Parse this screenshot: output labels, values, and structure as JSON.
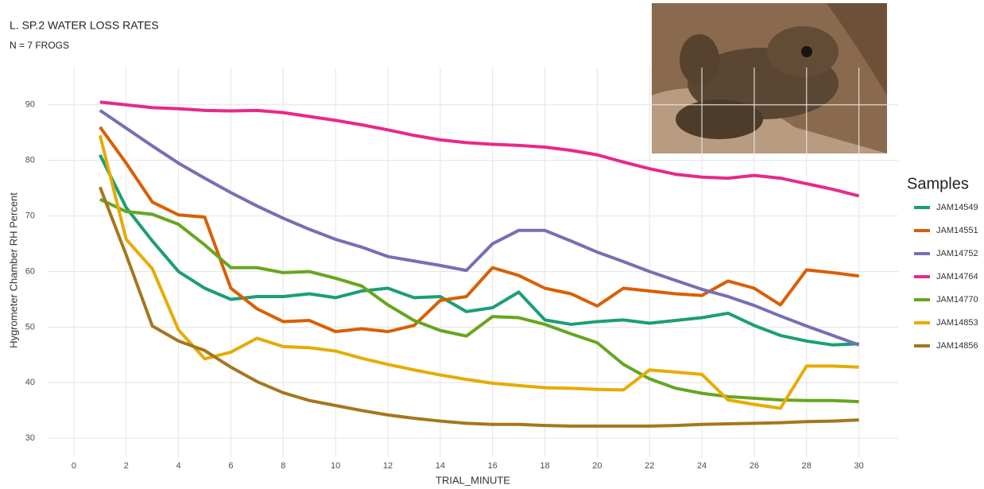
{
  "chart_data": {
    "type": "line",
    "title": "L. SP.2 WATER LOSS RATES",
    "subtitle": "N = 7 FROGS",
    "x_label": "TRIAL_MINUTE",
    "y_label": "Hygrometer Chamber RH Percent",
    "legend_title": "Samples",
    "legend_position": "right",
    "grid": true,
    "x": [
      1,
      2,
      3,
      4,
      5,
      6,
      7,
      8,
      9,
      10,
      11,
      12,
      13,
      14,
      15,
      16,
      17,
      18,
      19,
      20,
      21,
      22,
      23,
      24,
      25,
      26,
      27,
      28,
      29,
      30
    ],
    "xlim": [
      -1,
      31.5
    ],
    "xticks": [
      0,
      2,
      4,
      6,
      8,
      10,
      12,
      14,
      16,
      18,
      20,
      22,
      24,
      26,
      28,
      30
    ],
    "ylim": [
      26.6,
      96.7
    ],
    "yticks": [
      30,
      40,
      50,
      60,
      70,
      80,
      90
    ],
    "series": [
      {
        "name": "JAM14549",
        "color": "#1b9e77",
        "values": [
          81,
          71.5,
          65.5,
          60,
          57,
          55,
          55.5,
          55.5,
          56,
          55.3,
          56.5,
          57,
          55.3,
          55.5,
          52.8,
          53.5,
          56.3,
          51.3,
          50.5,
          51,
          51.3,
          50.7,
          51.2,
          51.7,
          52.5,
          50.3,
          48.5,
          47.5,
          46.8,
          47
        ]
      },
      {
        "name": "JAM14551",
        "color": "#d95f02",
        "values": [
          86,
          79.5,
          72.5,
          70.2,
          69.8,
          57,
          53.3,
          51,
          51.2,
          49.2,
          49.7,
          49.2,
          50.3,
          54.8,
          55.5,
          60.7,
          59.3,
          57,
          56,
          53.8,
          57,
          56.5,
          56,
          55.7,
          58.3,
          57,
          54,
          60.3,
          59.8,
          59.2
        ]
      },
      {
        "name": "JAM14752",
        "color": "#7570b3",
        "values": [
          89,
          85.8,
          82.6,
          79.5,
          76.8,
          74.2,
          71.8,
          69.6,
          67.6,
          65.8,
          64.4,
          62.7,
          61.9,
          61.1,
          60.2,
          65,
          67.4,
          67.4,
          65.5,
          63.5,
          61.8,
          60,
          58.4,
          56.8,
          55.5,
          53.9,
          52,
          50.2,
          48.5,
          46.8
        ]
      },
      {
        "name": "JAM14764",
        "color": "#e7298a",
        "values": [
          90.5,
          90,
          89.5,
          89.3,
          89,
          88.9,
          89,
          88.6,
          87.9,
          87.2,
          86.4,
          85.5,
          84.5,
          83.7,
          83.2,
          82.9,
          82.7,
          82.4,
          81.8,
          81,
          79.7,
          78.5,
          77.5,
          77,
          76.8,
          77.3,
          76.8,
          75.8,
          74.8,
          73.6
        ]
      },
      {
        "name": "JAM14770",
        "color": "#66a61e",
        "values": [
          73,
          70.8,
          70.3,
          68.5,
          64.8,
          60.7,
          60.7,
          59.8,
          60,
          58.8,
          57.4,
          54,
          51.2,
          49.4,
          48.4,
          51.9,
          51.7,
          50.5,
          48.8,
          47.2,
          43.3,
          40.7,
          39,
          38.1,
          37.5,
          37.2,
          36.9,
          36.8,
          36.8,
          36.6
        ]
      },
      {
        "name": "JAM14853",
        "color": "#e6ab02",
        "values": [
          84.5,
          65.8,
          60.5,
          49.5,
          44.3,
          45.5,
          48,
          46.5,
          46.3,
          45.7,
          44.4,
          43.3,
          42.3,
          41.4,
          40.6,
          39.9,
          39.5,
          39.1,
          39,
          38.8,
          38.7,
          42.3,
          41.9,
          41.5,
          36.9,
          36.1,
          35.4,
          43,
          43,
          42.8
        ]
      },
      {
        "name": "JAM14856",
        "color": "#a6761d",
        "values": [
          75.2,
          63,
          50.2,
          47.5,
          45.8,
          42.8,
          40.2,
          38.2,
          36.8,
          35.9,
          35,
          34.2,
          33.6,
          33.1,
          32.7,
          32.5,
          32.5,
          32.3,
          32.2,
          32.2,
          32.2,
          32.2,
          32.3,
          32.5,
          32.6,
          32.7,
          32.8,
          33,
          33.1,
          33.3
        ]
      }
    ]
  }
}
